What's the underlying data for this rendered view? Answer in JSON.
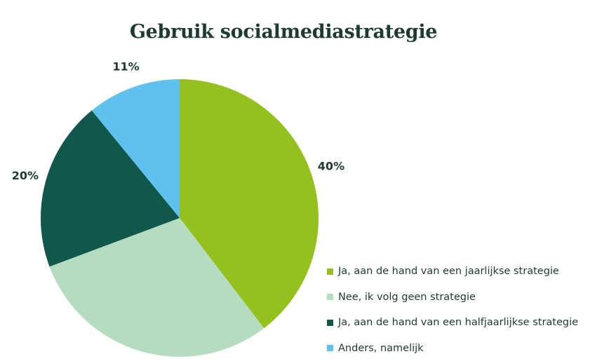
{
  "chart_data": {
    "type": "pie",
    "title": "Gebruik socialmediastrategie",
    "categories": [
      "Ja, aan de hand van een jaarlijkse strategie",
      "Nee, ik volg geen strategie",
      "Ja, aan de hand van een halfjaarlijkse strategie",
      "Anders, namelijk"
    ],
    "values": [
      40,
      30,
      20,
      11
    ],
    "value_labels": [
      "40%",
      "30%",
      "20%",
      "11%"
    ],
    "colors": [
      "#95c11f",
      "#b5dcbf",
      "#11574c",
      "#5ec1ee"
    ],
    "legend_position": "bottom-right"
  }
}
